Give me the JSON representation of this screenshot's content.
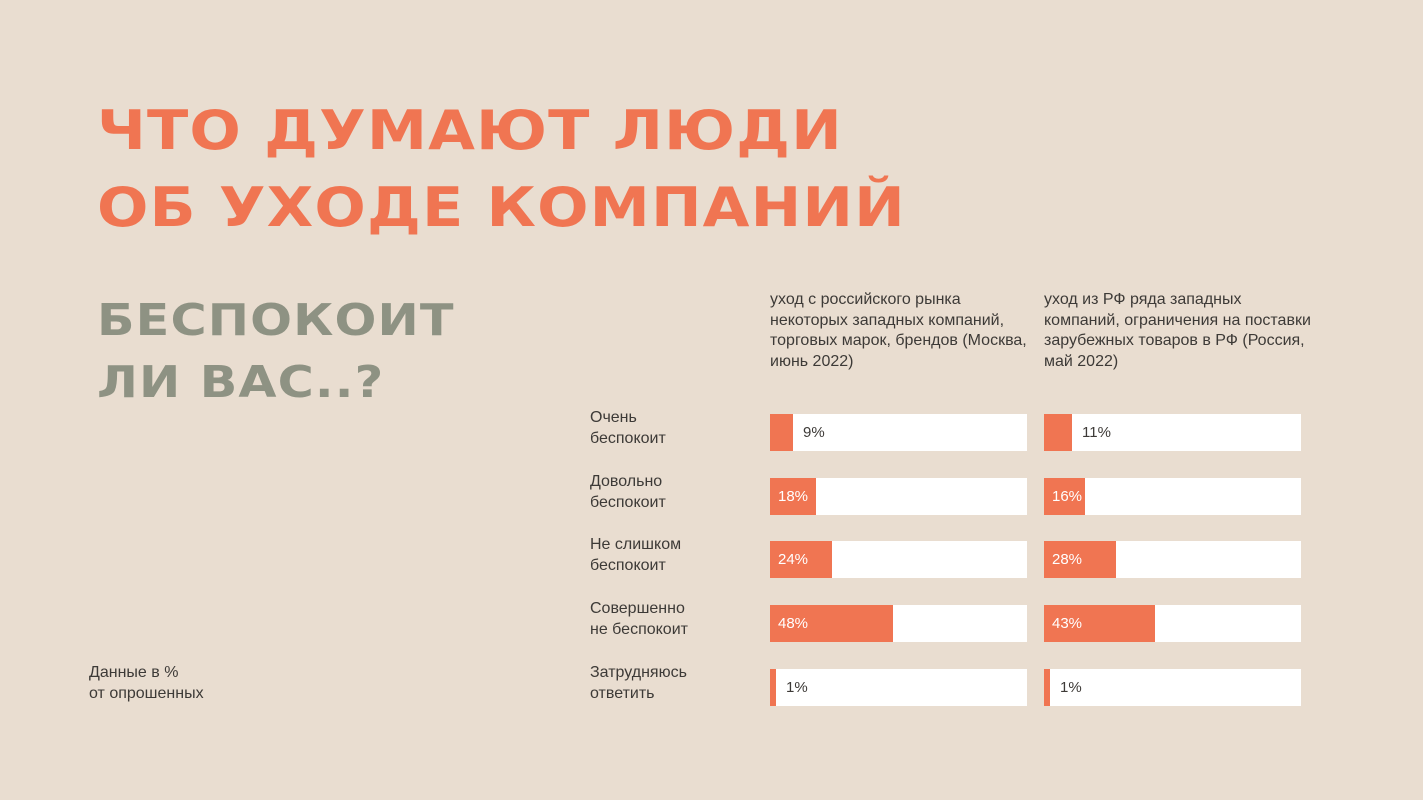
{
  "title": {
    "line1": "ЧТО ДУМАЮТ ЛЮДИ",
    "line2": "ОБ УХОДЕ КОМПАНИЙ"
  },
  "subtitle": {
    "line1": "БЕСПОКОИТ",
    "line2": "ЛИ ВАС..?"
  },
  "note": {
    "line1": "Данные в %",
    "line2": "от опрошенных"
  },
  "colors": {
    "accent": "#f07552",
    "subtitle": "#8e9283",
    "background": "#e9ddd0",
    "track": "#ffffff"
  },
  "chart_data": {
    "type": "bar",
    "orientation": "horizontal",
    "unit": "%",
    "xlim": [
      0,
      100
    ],
    "categories": [
      [
        "Очень",
        "беспокоит"
      ],
      [
        "Довольно",
        "беспокоит"
      ],
      [
        "Не слишком",
        "беспокоит"
      ],
      [
        "Совершенно",
        "не беспокоит"
      ],
      [
        "Затрудняюсь",
        "ответить"
      ]
    ],
    "series": [
      {
        "name": "уход с российского рынка некоторых западных компаний, торговых марок, брендов (Москва, июнь 2022)",
        "values": [
          9,
          18,
          24,
          48,
          1
        ],
        "labels": [
          "9%",
          "18%",
          "24%",
          "48%",
          "1%"
        ]
      },
      {
        "name": "уход из РФ ряда западных компаний, ограничения на поставки зарубежных товаров в РФ (Россия, май 2022)",
        "values": [
          11,
          16,
          28,
          43,
          1
        ],
        "labels": [
          "11%",
          "16%",
          "28%",
          "43%",
          "1%"
        ]
      }
    ]
  }
}
